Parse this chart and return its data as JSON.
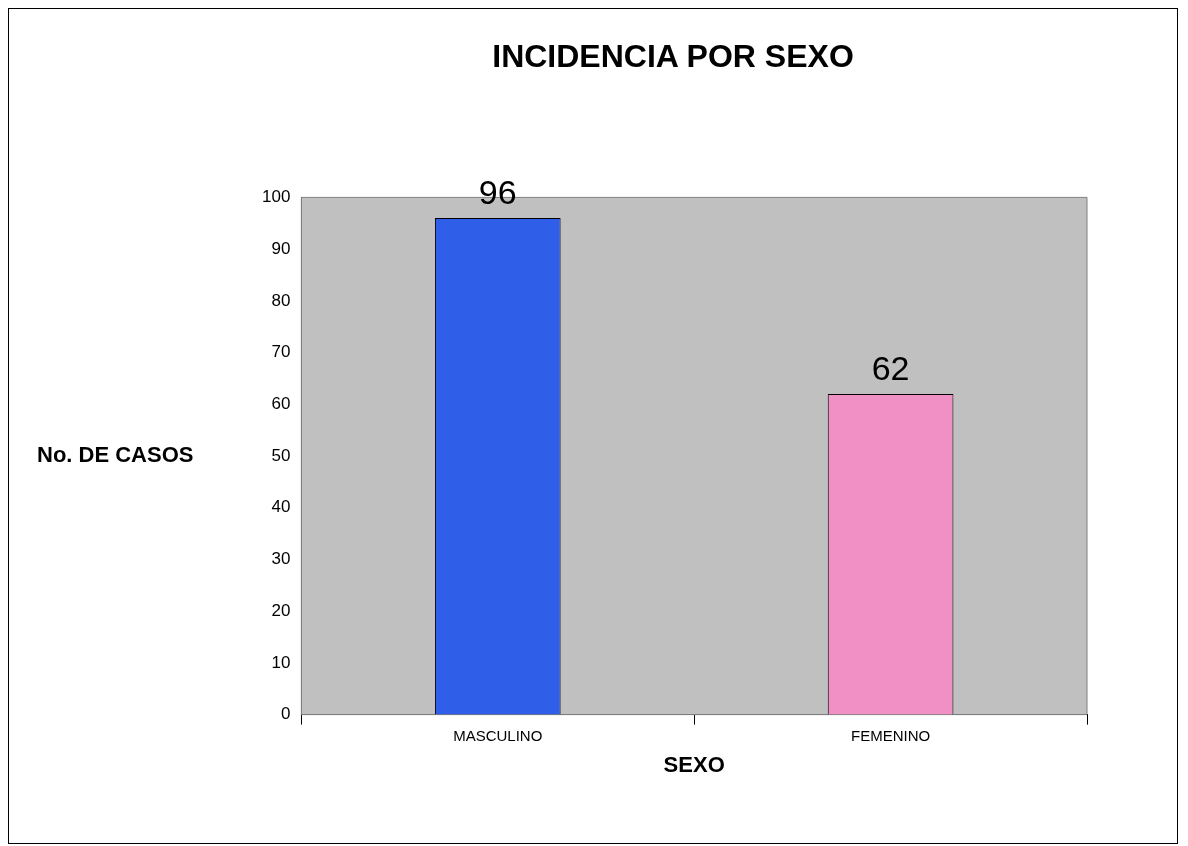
{
  "chart_data": {
    "type": "bar",
    "title": "INCIDENCIA POR SEXO",
    "xlabel": "SEXO",
    "ylabel": "No. DE CASOS",
    "categories": [
      "MASCULINO",
      "FEMENINO"
    ],
    "values": [
      96,
      62
    ],
    "colors": [
      "#2f5fe8",
      "#f090c4"
    ],
    "ylim": [
      0,
      100
    ],
    "yticks": [
      0,
      10,
      20,
      30,
      40,
      50,
      60,
      70,
      80,
      90,
      100
    ],
    "data_labels": true,
    "grid": false,
    "legend": false
  }
}
